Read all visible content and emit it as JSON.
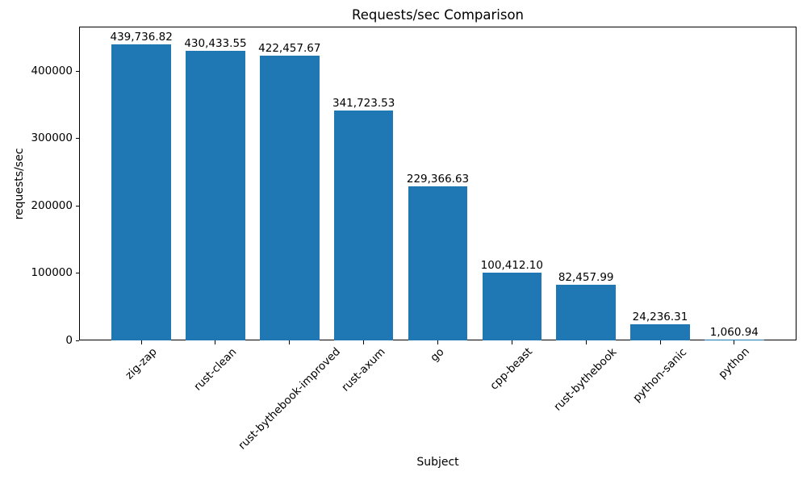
{
  "chart_data": {
    "type": "bar",
    "title": "Requests/sec Comparison",
    "xlabel": "Subject",
    "ylabel": "requests/sec",
    "categories": [
      "zig-zap",
      "rust-clean",
      "rust-bythebook-improved",
      "rust-axum",
      "go",
      "cpp-beast",
      "rust-bythebook",
      "python-sanic",
      "python"
    ],
    "values": [
      439736.82,
      430433.55,
      422457.67,
      341723.53,
      229366.63,
      100412.1,
      82457.99,
      24236.31,
      1060.94
    ],
    "value_labels": [
      "439,736.82",
      "430,433.55",
      "422,457.67",
      "341,723.53",
      "229,366.63",
      "100,412.10",
      "82,457.99",
      "24,236.31",
      "1,060.94"
    ],
    "yticks": [
      0,
      100000,
      200000,
      300000,
      400000
    ],
    "ytick_labels": [
      "0",
      "100000",
      "200000",
      "300000",
      "400000"
    ],
    "ylim": [
      0,
      466000
    ],
    "bar_color": "#1f77b4",
    "background_color": "#ffffff",
    "grid": false,
    "legend_position": "none"
  }
}
